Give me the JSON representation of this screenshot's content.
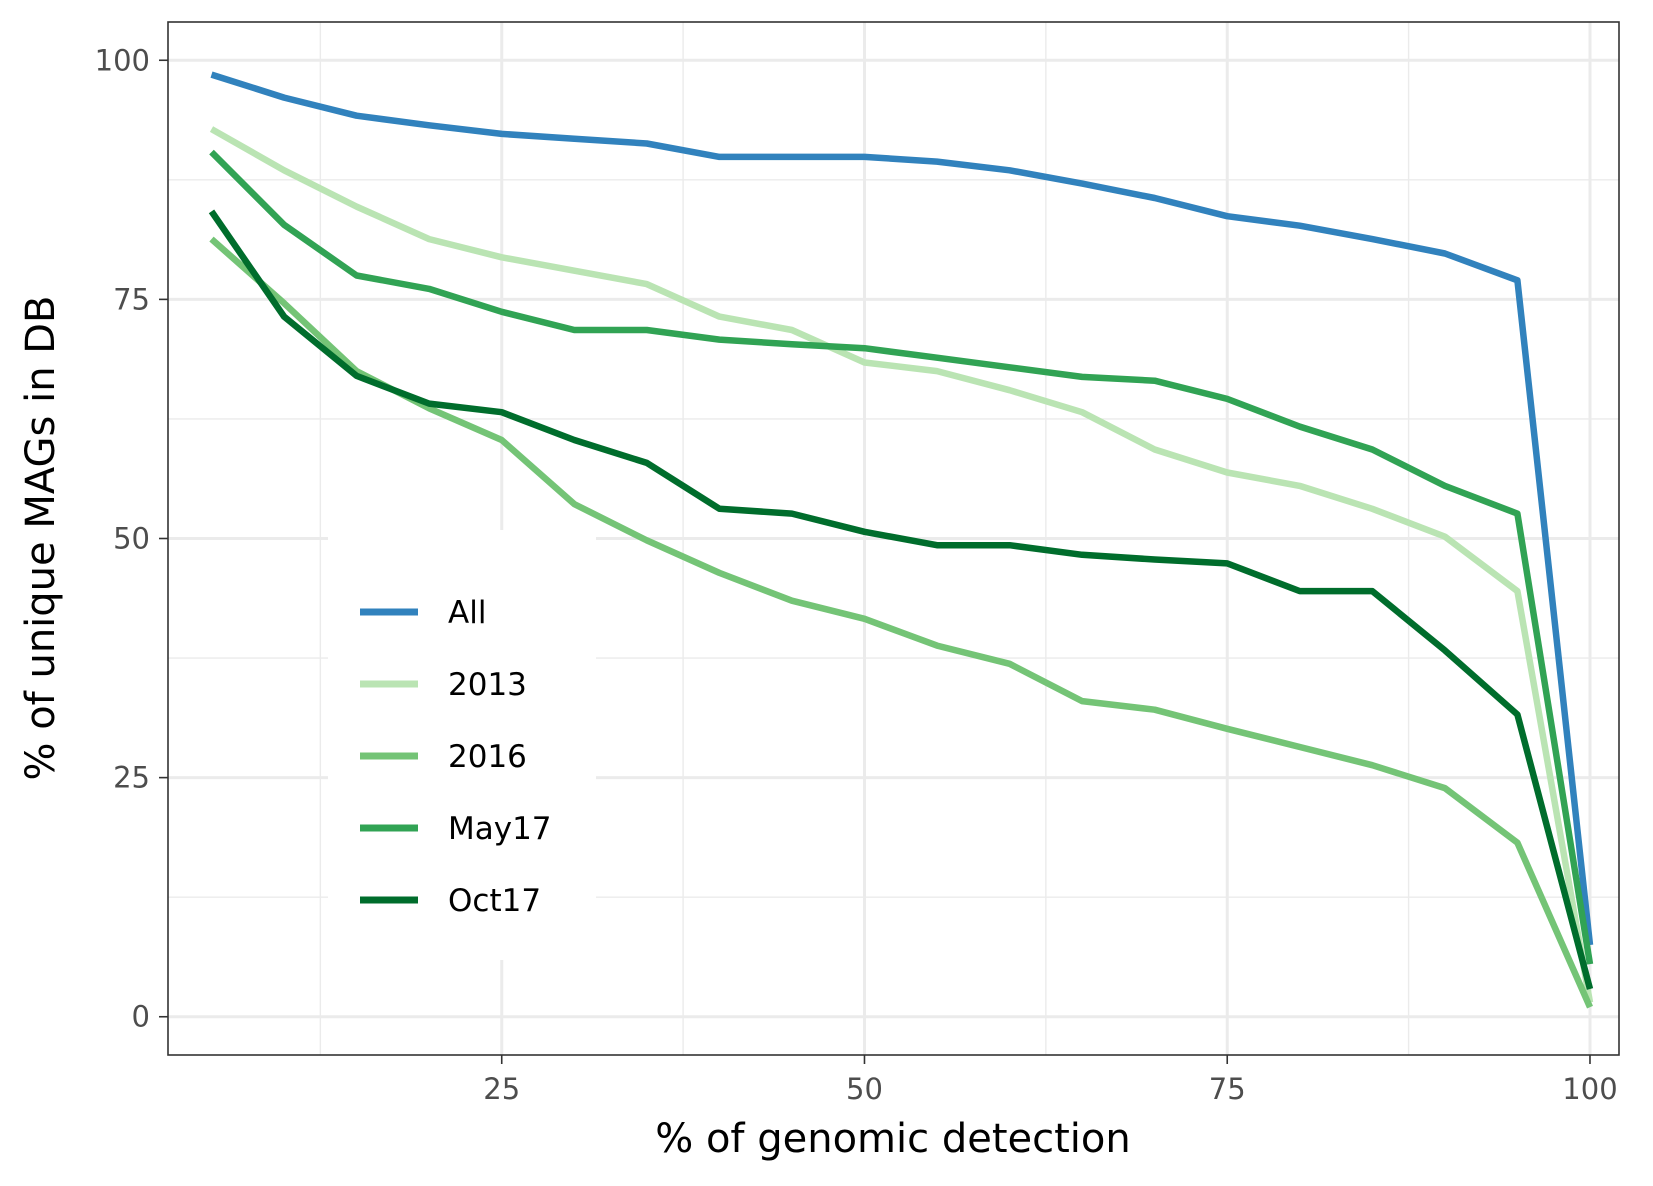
{
  "chart_data": {
    "type": "line",
    "title": "",
    "xlabel": "% of genomic detection",
    "ylabel": "% of unique MAGs in DB",
    "xlim": [
      2,
      102
    ],
    "ylim": [
      -4,
      104
    ],
    "xticks": [
      25,
      50,
      75,
      100
    ],
    "yticks": [
      0,
      25,
      50,
      75,
      100
    ],
    "x_tick_labels": [
      "25",
      "50",
      "75",
      "100"
    ],
    "y_tick_labels": [
      "0",
      "25",
      "50",
      "75",
      "100"
    ],
    "grid": true,
    "legend_position": "inside-lower-left",
    "x": [
      5,
      10,
      15,
      20,
      25,
      30,
      35,
      40,
      45,
      50,
      55,
      60,
      65,
      70,
      75,
      80,
      85,
      90,
      95,
      100
    ],
    "series": [
      {
        "name": "All",
        "color": "#3182bd",
        "values": [
          98.5,
          96.1,
          94.2,
          93.2,
          92.3,
          91.8,
          91.3,
          89.9,
          89.9,
          89.9,
          89.4,
          88.5,
          87.1,
          85.6,
          83.7,
          82.7,
          81.3,
          79.8,
          77.0,
          7.5
        ]
      },
      {
        "name": "2013",
        "color": "#bae4b3",
        "values": [
          92.8,
          88.5,
          84.7,
          81.3,
          79.4,
          78.0,
          76.6,
          73.2,
          71.8,
          68.4,
          67.5,
          65.5,
          63.2,
          59.3,
          56.9,
          55.5,
          53.1,
          50.2,
          44.5,
          1.5
        ]
      },
      {
        "name": "2016",
        "color": "#74c476",
        "values": [
          81.3,
          74.6,
          67.5,
          63.6,
          60.3,
          53.6,
          49.8,
          46.4,
          43.5,
          41.6,
          38.8,
          36.9,
          33.0,
          32.1,
          30.1,
          28.2,
          26.3,
          23.9,
          18.2,
          1.0
        ]
      },
      {
        "name": "May17",
        "color": "#31a354",
        "values": [
          90.4,
          82.8,
          77.5,
          76.1,
          73.7,
          71.8,
          71.8,
          70.8,
          70.3,
          69.9,
          68.9,
          67.9,
          66.9,
          66.5,
          64.6,
          61.7,
          59.3,
          55.5,
          52.6,
          5.5
        ]
      },
      {
        "name": "Oct17",
        "color": "#006d2c",
        "values": [
          84.2,
          73.2,
          67.0,
          64.1,
          63.2,
          60.3,
          57.9,
          53.1,
          52.6,
          50.7,
          49.3,
          49.3,
          48.3,
          47.8,
          47.4,
          44.5,
          44.5,
          38.3,
          31.6,
          2.9
        ]
      }
    ]
  }
}
